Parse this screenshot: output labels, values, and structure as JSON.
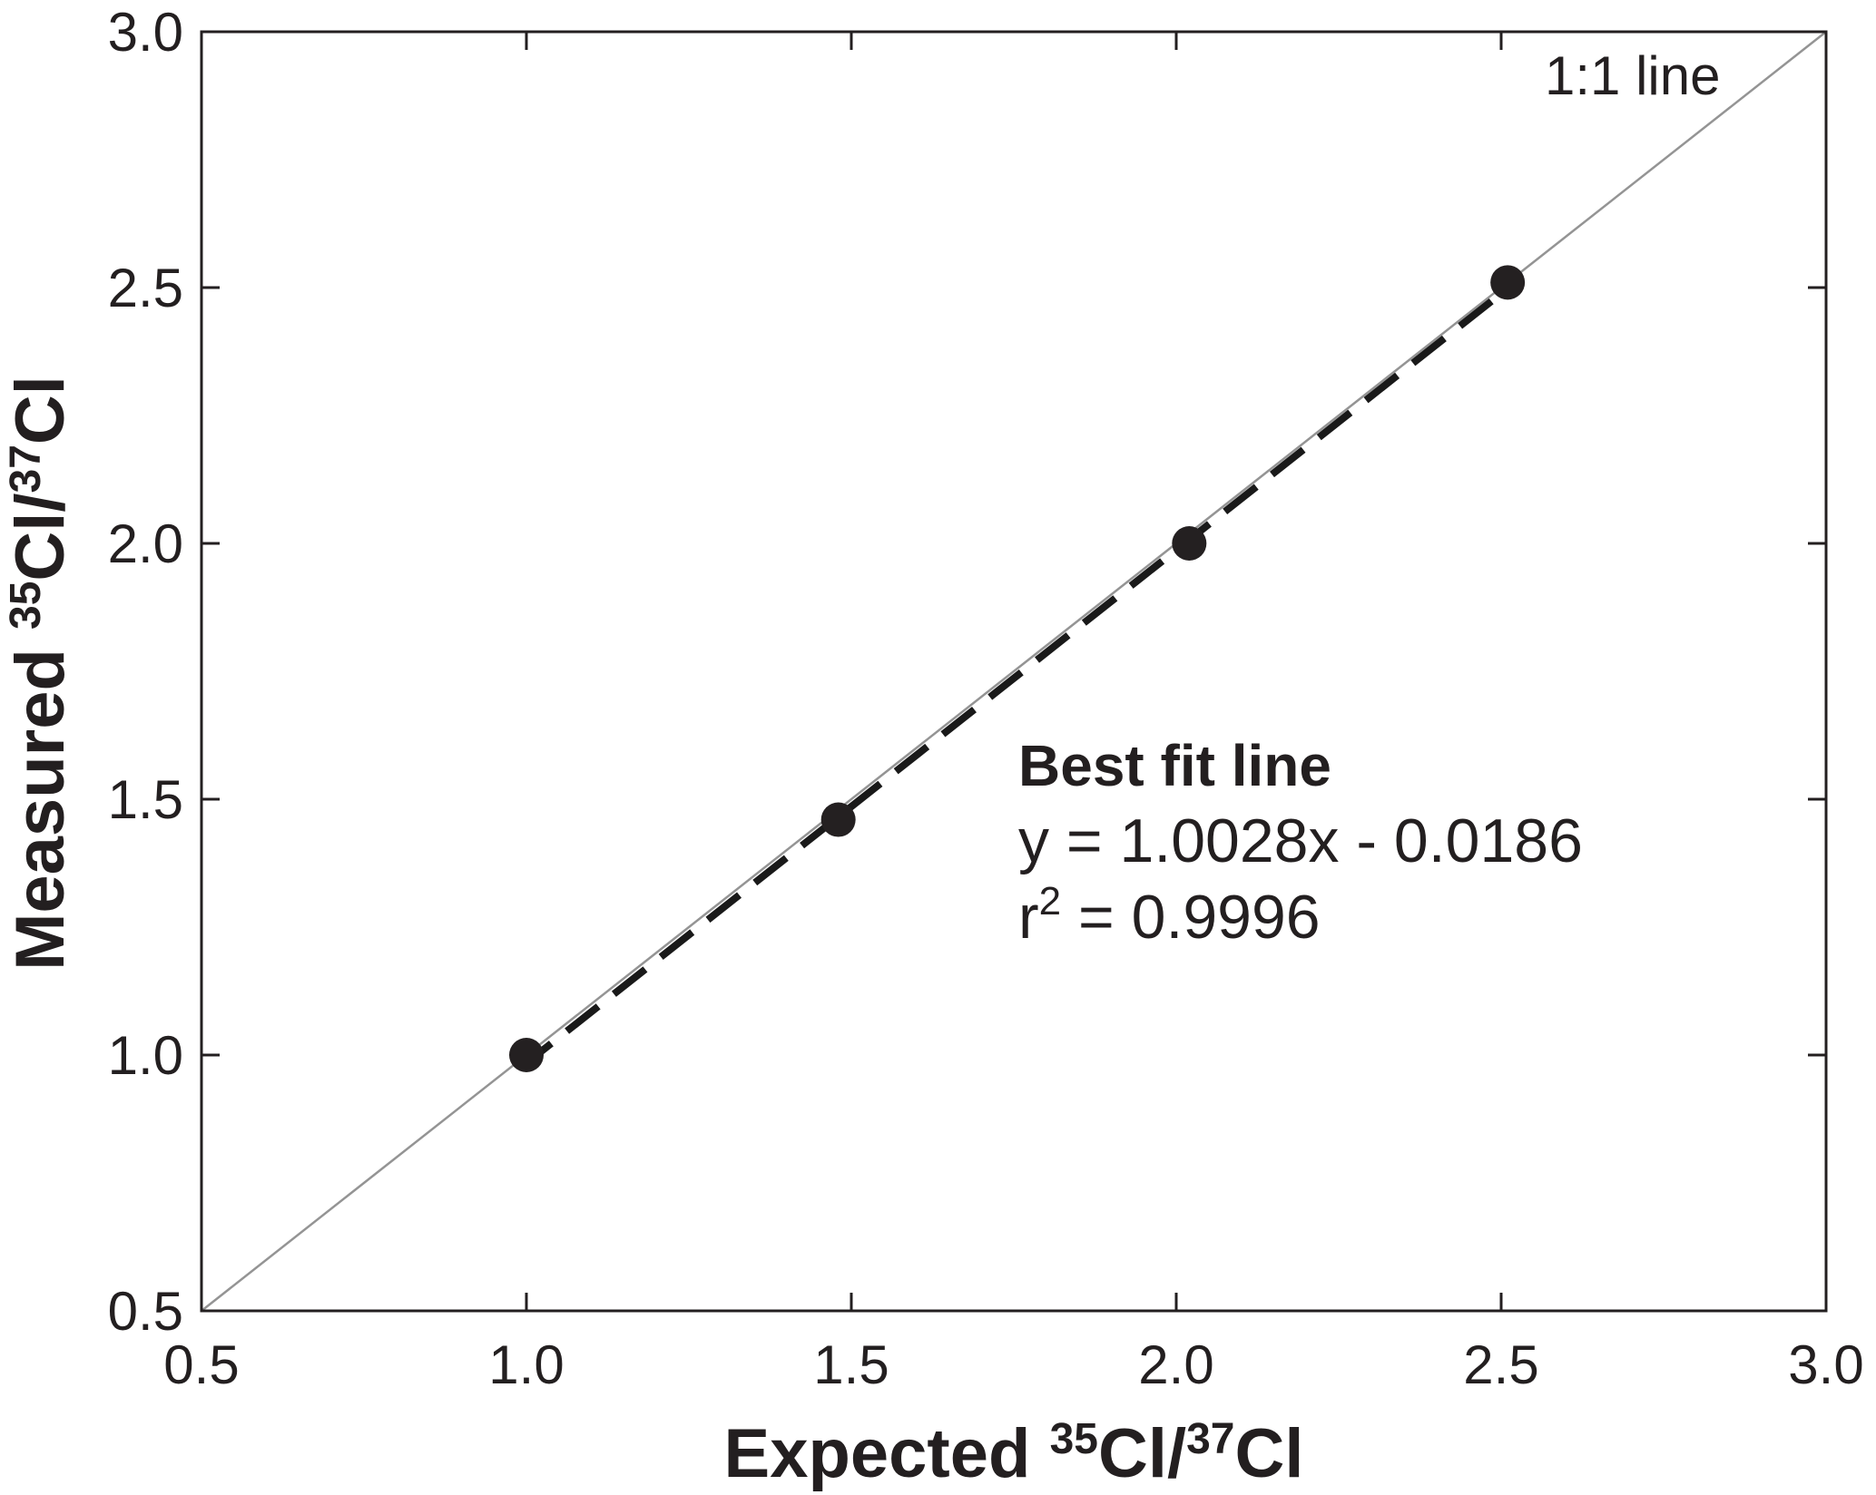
{
  "chart_data": {
    "type": "scatter",
    "title": "",
    "xlabel": "Expected 35Cl/37Cl",
    "ylabel": "Measured 35Cl/37Cl",
    "xlim": [
      0.5,
      3.0
    ],
    "ylim": [
      0.5,
      3.0
    ],
    "grid": false,
    "legend": "none",
    "x_tick_values": [
      0.5,
      1.0,
      1.5,
      2.0,
      2.5,
      3.0
    ],
    "x_tick_labels": [
      "0.5",
      "1.0",
      "1.5",
      "2.0",
      "2.5",
      "3.0"
    ],
    "y_tick_values": [
      0.5,
      1.0,
      1.5,
      2.0,
      2.5,
      3.0
    ],
    "y_tick_labels": [
      "0.5",
      "1.0",
      "1.5",
      "2.0",
      "2.5",
      "3.0"
    ],
    "series": [
      {
        "name": "one-to-one-line",
        "kind": "line",
        "style": "solid",
        "color_key": "identity_line",
        "slope": 1.0,
        "intercept": 0.0,
        "x_range": [
          0.5,
          3.0
        ],
        "width": 2.5
      },
      {
        "name": "best-fit-line",
        "kind": "line",
        "style": "dashed",
        "color_key": "fit_line",
        "slope": 1.0028,
        "intercept": -0.0186,
        "x_range": [
          0.99,
          2.52
        ],
        "width": 8,
        "dash": "44 22"
      },
      {
        "name": "measured-samples",
        "kind": "scatter",
        "color_key": "points",
        "marker": "circle",
        "marker_radius": 19,
        "points": [
          [
            1.0,
            1.0
          ],
          [
            1.48,
            1.46
          ],
          [
            2.02,
            2.0
          ],
          [
            2.51,
            2.51
          ]
        ]
      }
    ],
    "axis_titles": {
      "x_word": "Expected ",
      "x_sup1": "35",
      "x_mid": "Cl/",
      "x_sup2": "37",
      "x_end": "Cl",
      "y_word": "Measured ",
      "y_sup1": "35",
      "y_mid": "Cl/",
      "y_sup2": "37",
      "y_end": "Cl"
    },
    "annotations": {
      "identity_label": "1:1 line",
      "fit_title": "Best fit line",
      "fit_equation": "y = 1.0028x - 0.0186",
      "r2_base": "r",
      "r2_sup": "2",
      "r2_rest": " = 0.9996"
    },
    "colors": {
      "axis": "#231f20",
      "points": "#242021",
      "fit_line": "#191919",
      "identity_line": "#949494",
      "identity_label": "#a3a3a3",
      "background": "#ffffff"
    }
  }
}
